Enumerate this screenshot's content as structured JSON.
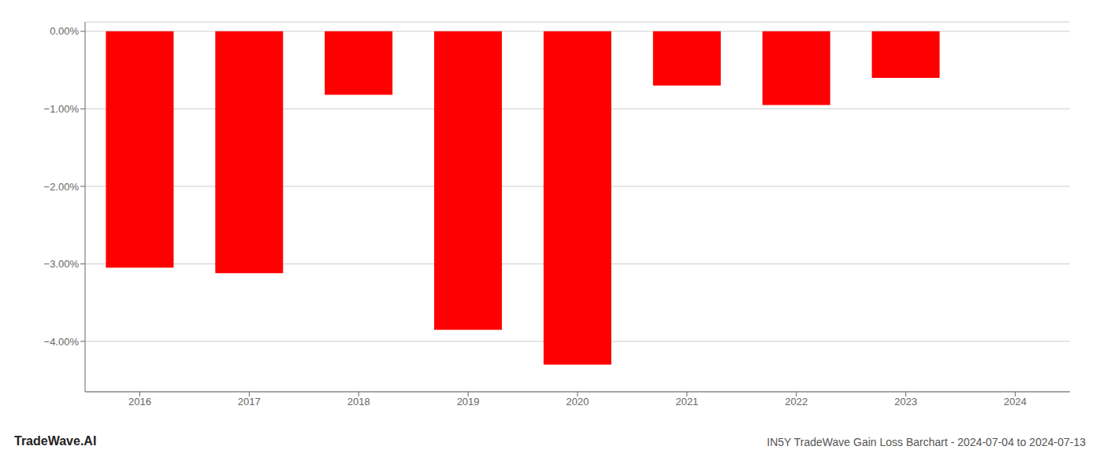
{
  "chart_data": {
    "type": "bar",
    "title": "IN5Y TradeWave Gain Loss Barchart - 2024-07-04 to 2024-07-13",
    "annotations": [
      "TradeWave.AI"
    ],
    "categories": [
      "2016",
      "2017",
      "2018",
      "2019",
      "2020",
      "2021",
      "2022",
      "2023",
      "2024"
    ],
    "values": [
      -3.05,
      -3.12,
      -0.82,
      -3.85,
      -4.3,
      -0.7,
      -0.95,
      -0.6,
      0.0
    ],
    "color": "#ff0000",
    "ylim": [
      -4.65,
      0.12
    ],
    "yticks": [
      {
        "value": 0.0,
        "label": "0.00%"
      },
      {
        "value": -1.0,
        "label": "−1.00%"
      },
      {
        "value": -2.0,
        "label": "−2.00%"
      },
      {
        "value": -3.0,
        "label": "−3.00%"
      },
      {
        "value": -4.0,
        "label": "−4.00%"
      }
    ],
    "grid": true
  }
}
